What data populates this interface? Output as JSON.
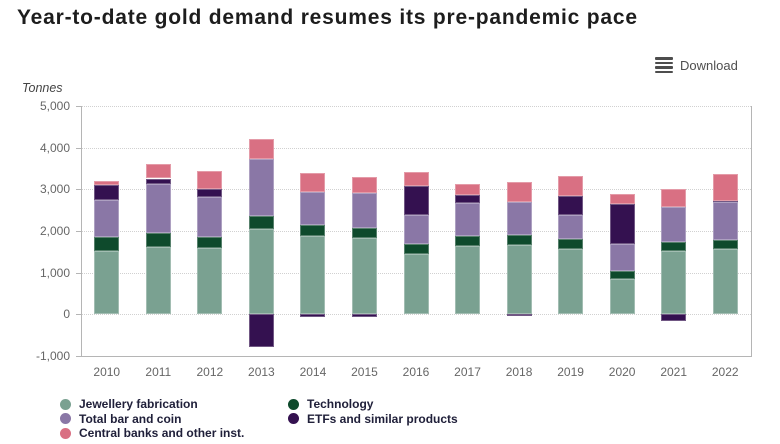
{
  "header": {
    "title": "Year-to-date gold demand resumes its pre-pandemic pace",
    "download_label": "Download"
  },
  "chart_data": {
    "type": "bar",
    "stacked": true,
    "title": "Year-to-date gold demand resumes its pre-pandemic pace",
    "ylabel": "Tonnes",
    "ylim": [
      -1000,
      5000
    ],
    "ytick_interval": 1000,
    "grid": true,
    "legend_position": "bottom",
    "categories": [
      "2010",
      "2011",
      "2012",
      "2013",
      "2014",
      "2015",
      "2016",
      "2017",
      "2018",
      "2019",
      "2020",
      "2021",
      "2022"
    ],
    "series": [
      {
        "name": "Jewellery fabrication",
        "color": "#7aa191",
        "values": [
          1520,
          1625,
          1590,
          2050,
          1875,
          1830,
          1460,
          1645,
          1670,
          1565,
          845,
          1525,
          1565
        ]
      },
      {
        "name": "Technology",
        "color": "#0e4a2c",
        "values": [
          325,
          320,
          255,
          300,
          260,
          240,
          225,
          230,
          230,
          240,
          200,
          215,
          230
        ]
      },
      {
        "name": "Total bar and coin",
        "color": "#8a77a6",
        "values": [
          905,
          1175,
          960,
          1375,
          790,
          840,
          690,
          805,
          795,
          590,
          640,
          840,
          900
        ]
      },
      {
        "name": "ETFs and similar products",
        "color": "#341150",
        "values": [
          345,
          140,
          200,
          -775,
          -55,
          -60,
          700,
          175,
          -40,
          440,
          975,
          -150,
          30
        ]
      },
      {
        "name": "Central banks and other inst.",
        "color": "#d97083",
        "values": [
          110,
          340,
          425,
          485,
          460,
          380,
          335,
          280,
          480,
          480,
          225,
          440,
          635
        ]
      }
    ]
  },
  "legend": {
    "columns": [
      [
        "Jewellery fabrication",
        "Total bar and coin",
        "Central banks and other inst."
      ],
      [
        "Technology",
        "ETFs and similar products"
      ]
    ]
  }
}
